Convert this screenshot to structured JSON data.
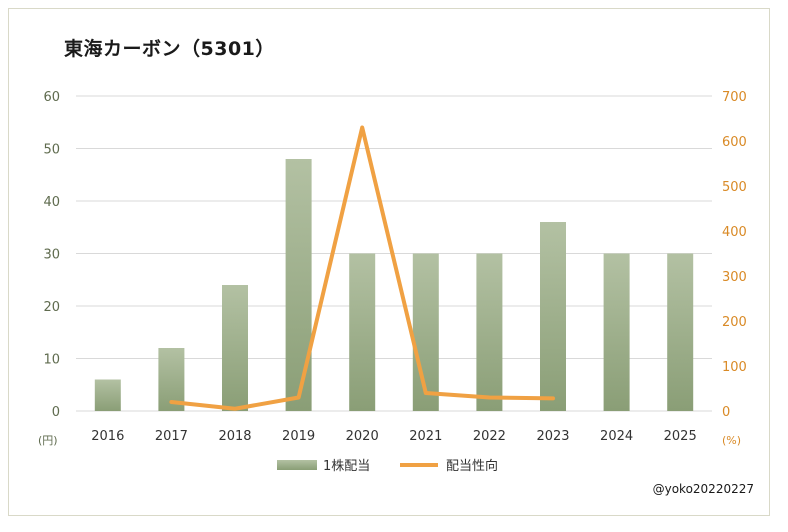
{
  "title": "東海カーボン（5301）",
  "credit": "@yoko20220227",
  "chart_data": {
    "type": "bar+line",
    "categories": [
      "2016",
      "2017",
      "2018",
      "2019",
      "2020",
      "2021",
      "2022",
      "2023",
      "2024",
      "2025"
    ],
    "series": [
      {
        "name": "1株配当",
        "type": "bar",
        "axis": "left",
        "values": [
          6,
          12,
          24,
          48,
          30,
          30,
          30,
          36,
          30,
          30
        ]
      },
      {
        "name": "配当性向",
        "type": "line",
        "axis": "right",
        "values": [
          null,
          20,
          5,
          30,
          630,
          40,
          30,
          28,
          null,
          null
        ]
      }
    ],
    "y_left": {
      "unit": "(円)",
      "ylim": [
        0,
        60
      ],
      "ticks": [
        "0",
        "10",
        "20",
        "30",
        "40",
        "50",
        "60"
      ]
    },
    "y_right": {
      "unit": "(%)",
      "ylim": [
        0,
        700
      ],
      "ticks": [
        "0",
        "100",
        "200",
        "300",
        "400",
        "500",
        "600",
        "700"
      ]
    },
    "grid": true,
    "legend_position": "bottom",
    "colors": {
      "bar": "#9aab88",
      "line": "#f0a143",
      "grid": "#d9d9d9"
    }
  }
}
